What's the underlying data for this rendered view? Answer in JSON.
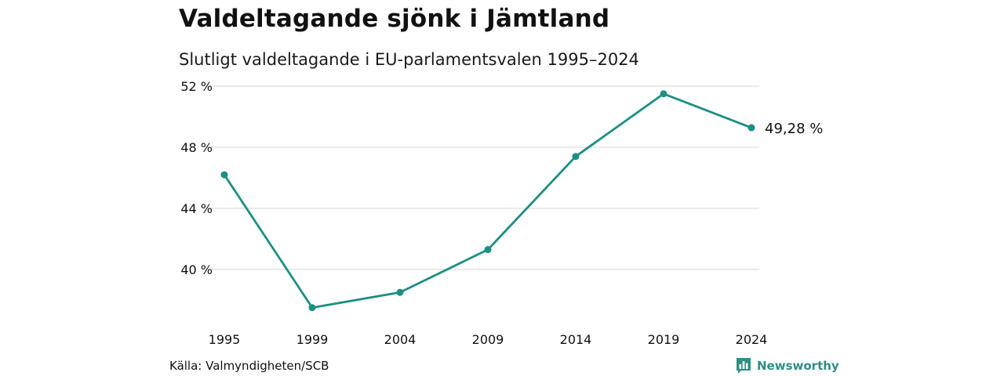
{
  "chart_data": {
    "type": "line",
    "title": "Valdeltagande sjönk i Jämtland",
    "subtitle": "Slutligt valdeltagande i EU-parlamentsvalen 1995–2024",
    "x": [
      "1995",
      "1999",
      "2004",
      "2009",
      "2014",
      "2019",
      "2024"
    ],
    "series": [
      {
        "values": [
          46.2,
          37.5,
          38.5,
          41.3,
          47.4,
          51.5,
          49.28
        ]
      }
    ],
    "end_label": "49,28 %",
    "y_ticks": [
      "40 %",
      "44 %",
      "48 %",
      "52 %"
    ],
    "y_tick_values": [
      40,
      44,
      48,
      52
    ],
    "ylim": [
      36.5,
      52
    ],
    "grid": true,
    "line_color": "#1b8f82",
    "grid_color": "#dddddd"
  },
  "source": "Källa: Valmyndigheten/SCB",
  "brand": {
    "name": "Newsworthy",
    "icon": "bar-chart-speech-bubble-icon",
    "color": "#2f8f83"
  }
}
